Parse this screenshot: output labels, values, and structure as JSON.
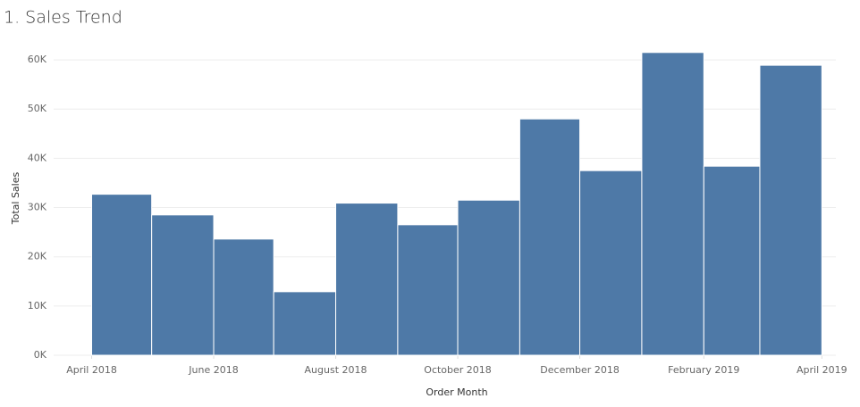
{
  "chart_data": {
    "type": "bar",
    "title": "1. Sales Trend",
    "x_label": "Order Month",
    "y_label": "Total Sales",
    "x": [
      "2018-04",
      "2018-05",
      "2018-06",
      "2018-07",
      "2018-08",
      "2018-09",
      "2018-10",
      "2018-11",
      "2018-12",
      "2019-01",
      "2019-02",
      "2019-03"
    ],
    "values": [
      32700,
      28500,
      23600,
      12900,
      30900,
      26500,
      31500,
      48000,
      37500,
      61500,
      38400,
      58900
    ],
    "color": "#4e79a7",
    "xlim": [
      "2018-03-13",
      "2019-04-08"
    ],
    "xticks": [
      {
        "value": "2018-04",
        "label": "April 2018"
      },
      {
        "value": "2018-06",
        "label": "June 2018"
      },
      {
        "value": "2018-08",
        "label": "August 2018"
      },
      {
        "value": "2018-10",
        "label": "October 2018"
      },
      {
        "value": "2018-12",
        "label": "December 2018"
      },
      {
        "value": "2019-02",
        "label": "February 2019"
      },
      {
        "value": "2019-04",
        "label": "April 2019"
      }
    ],
    "ylim": [
      0,
      64000
    ],
    "yticks": [
      {
        "value": 0,
        "label": "0K"
      },
      {
        "value": 10000,
        "label": "10K"
      },
      {
        "value": 20000,
        "label": "20K"
      },
      {
        "value": 30000,
        "label": "30K"
      },
      {
        "value": 40000,
        "label": "40K"
      },
      {
        "value": 50000,
        "label": "50K"
      },
      {
        "value": 60000,
        "label": "60K"
      }
    ],
    "grid": true
  }
}
